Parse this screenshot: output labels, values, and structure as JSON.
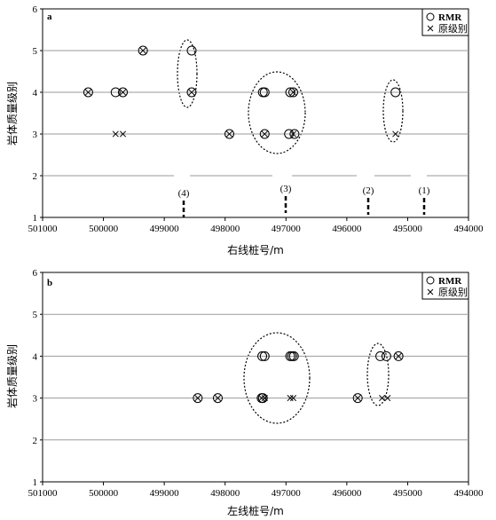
{
  "chart_data": [
    {
      "type": "scatter",
      "panel_label": "a",
      "xlabel": "右线桩号/m",
      "ylabel": "岩体质量级别",
      "xlim": [
        501000,
        494000
      ],
      "ylim": [
        1,
        6
      ],
      "x_ticks": [
        "501000",
        "500000",
        "499000",
        "498000",
        "497000",
        "496000",
        "495000",
        "494000"
      ],
      "y_ticks": [
        "1",
        "2",
        "3",
        "4",
        "5",
        "6"
      ],
      "grid": "horizontal",
      "legend_position": "top-right",
      "series": [
        {
          "name": "RMR",
          "marker": "circle",
          "points": [
            [
              500250,
              4
            ],
            [
              499800,
              4
            ],
            [
              499680,
              4
            ],
            [
              499350,
              5
            ],
            [
              498550,
              5
            ],
            [
              498550,
              4
            ],
            [
              497930,
              3
            ],
            [
              497380,
              4
            ],
            [
              497350,
              4
            ],
            [
              497350,
              3
            ],
            [
              496950,
              3
            ],
            [
              496930,
              4
            ],
            [
              496880,
              4
            ],
            [
              496860,
              3
            ],
            [
              495200,
              4
            ]
          ]
        },
        {
          "name": "原级别",
          "marker": "x",
          "points": [
            [
              500250,
              4
            ],
            [
              499800,
              3
            ],
            [
              499680,
              4
            ],
            [
              499680,
              3
            ],
            [
              499350,
              5
            ],
            [
              498550,
              4
            ],
            [
              497930,
              3
            ],
            [
              497350,
              3
            ],
            [
              496880,
              4
            ],
            [
              496880,
              3
            ],
            [
              495200,
              3
            ]
          ]
        }
      ],
      "group_labels": [
        {
          "text": "(4)",
          "x": 498600
        },
        {
          "text": "(3)",
          "x": 496950
        },
        {
          "text": "(2)",
          "x": 495650
        },
        {
          "text": "(1)",
          "x": 494950
        }
      ]
    },
    {
      "type": "scatter",
      "panel_label": "b",
      "xlabel": "左线桩号/m",
      "ylabel": "岩体质量级别",
      "xlim": [
        501000,
        494000
      ],
      "ylim": [
        1,
        6
      ],
      "x_ticks": [
        "501000",
        "500000",
        "499000",
        "498000",
        "497000",
        "496000",
        "495000",
        "494000"
      ],
      "y_ticks": [
        "1",
        "2",
        "3",
        "4",
        "5",
        "6"
      ],
      "grid": "horizontal",
      "legend_position": "top-right",
      "series": [
        {
          "name": "RMR",
          "marker": "circle",
          "points": [
            [
              498450,
              3
            ],
            [
              498120,
              3
            ],
            [
              497390,
              4
            ],
            [
              497350,
              4
            ],
            [
              497400,
              3
            ],
            [
              497380,
              3
            ],
            [
              496930,
              4
            ],
            [
              496900,
              4
            ],
            [
              496870,
              4
            ],
            [
              495820,
              3
            ],
            [
              495450,
              4
            ],
            [
              495350,
              4
            ],
            [
              495150,
              4
            ]
          ]
        },
        {
          "name": "原级别",
          "marker": "x",
          "points": [
            [
              498450,
              3
            ],
            [
              498120,
              3
            ],
            [
              497400,
              3
            ],
            [
              497350,
              3
            ],
            [
              496930,
              3
            ],
            [
              496880,
              3
            ],
            [
              495820,
              3
            ],
            [
              495420,
              3
            ],
            [
              495330,
              3
            ],
            [
              495150,
              4
            ]
          ]
        }
      ]
    }
  ]
}
